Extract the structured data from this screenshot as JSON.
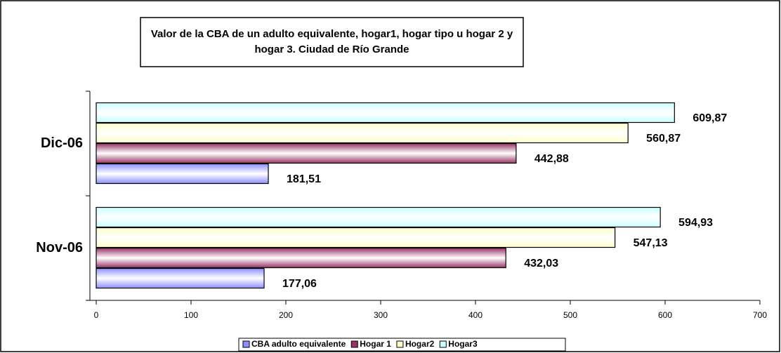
{
  "chart_data": {
    "type": "hbar",
    "title": "Valor de la CBA de un adulto equivalente, hogar1, hogar tipo u hogar 2 y hogar 3. Ciudad de Río Grande",
    "categories": [
      "Nov-06",
      "Dic-06"
    ],
    "series": [
      {
        "name": "CBA adulto equivalente",
        "color": "#8f8fff",
        "values": [
          177.06,
          181.51
        ],
        "value_labels": [
          "177,06",
          "181,51"
        ]
      },
      {
        "name": "Hogar 1",
        "color": "#993366",
        "values": [
          432.03,
          442.88
        ],
        "value_labels": [
          "432,03",
          "442,88"
        ]
      },
      {
        "name": "Hogar2",
        "color": "#ffffcc",
        "values": [
          547.13,
          560.87
        ],
        "value_labels": [
          "547,13",
          "560,87"
        ]
      },
      {
        "name": "Hogar3",
        "color": "#ccffff",
        "values": [
          594.93,
          609.87
        ],
        "value_labels": [
          "594,93",
          "609,87"
        ]
      }
    ],
    "xlim": [
      0,
      700
    ],
    "xticks": [
      0,
      100,
      200,
      300,
      400,
      500,
      600,
      700
    ]
  }
}
